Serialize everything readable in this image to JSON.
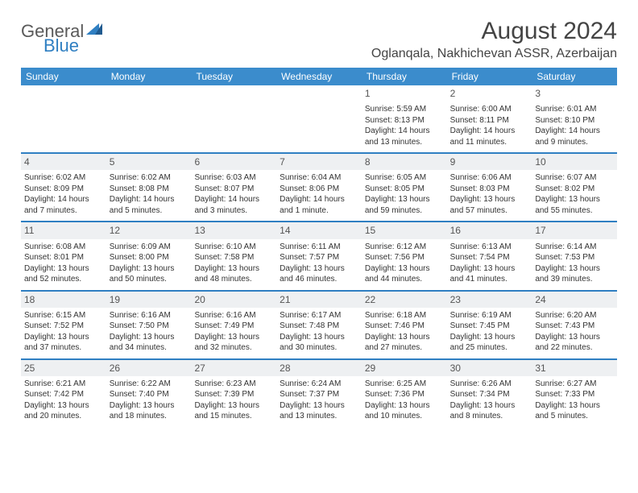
{
  "logo": {
    "text_gray": "General",
    "text_blue": "Blue"
  },
  "header": {
    "month_title": "August 2024",
    "location": "Oglanqala, Nakhichevan ASSR, Azerbaijan"
  },
  "colors": {
    "header_bg": "#3b8ccc",
    "week_border": "#2f7fc2",
    "stripe_bg": "#eef0f2",
    "text": "#333333"
  },
  "day_names": [
    "Sunday",
    "Monday",
    "Tuesday",
    "Wednesday",
    "Thursday",
    "Friday",
    "Saturday"
  ],
  "weeks": [
    [
      {
        "empty": true
      },
      {
        "empty": true
      },
      {
        "empty": true
      },
      {
        "empty": true
      },
      {
        "day": "1",
        "sunrise": "Sunrise: 5:59 AM",
        "sunset": "Sunset: 8:13 PM",
        "daylight1": "Daylight: 14 hours",
        "daylight2": "and 13 minutes.",
        "nostripe": true
      },
      {
        "day": "2",
        "sunrise": "Sunrise: 6:00 AM",
        "sunset": "Sunset: 8:11 PM",
        "daylight1": "Daylight: 14 hours",
        "daylight2": "and 11 minutes.",
        "nostripe": true
      },
      {
        "day": "3",
        "sunrise": "Sunrise: 6:01 AM",
        "sunset": "Sunset: 8:10 PM",
        "daylight1": "Daylight: 14 hours",
        "daylight2": "and 9 minutes.",
        "nostripe": true
      }
    ],
    [
      {
        "day": "4",
        "sunrise": "Sunrise: 6:02 AM",
        "sunset": "Sunset: 8:09 PM",
        "daylight1": "Daylight: 14 hours",
        "daylight2": "and 7 minutes."
      },
      {
        "day": "5",
        "sunrise": "Sunrise: 6:02 AM",
        "sunset": "Sunset: 8:08 PM",
        "daylight1": "Daylight: 14 hours",
        "daylight2": "and 5 minutes."
      },
      {
        "day": "6",
        "sunrise": "Sunrise: 6:03 AM",
        "sunset": "Sunset: 8:07 PM",
        "daylight1": "Daylight: 14 hours",
        "daylight2": "and 3 minutes."
      },
      {
        "day": "7",
        "sunrise": "Sunrise: 6:04 AM",
        "sunset": "Sunset: 8:06 PM",
        "daylight1": "Daylight: 14 hours",
        "daylight2": "and 1 minute."
      },
      {
        "day": "8",
        "sunrise": "Sunrise: 6:05 AM",
        "sunset": "Sunset: 8:05 PM",
        "daylight1": "Daylight: 13 hours",
        "daylight2": "and 59 minutes."
      },
      {
        "day": "9",
        "sunrise": "Sunrise: 6:06 AM",
        "sunset": "Sunset: 8:03 PM",
        "daylight1": "Daylight: 13 hours",
        "daylight2": "and 57 minutes."
      },
      {
        "day": "10",
        "sunrise": "Sunrise: 6:07 AM",
        "sunset": "Sunset: 8:02 PM",
        "daylight1": "Daylight: 13 hours",
        "daylight2": "and 55 minutes."
      }
    ],
    [
      {
        "day": "11",
        "sunrise": "Sunrise: 6:08 AM",
        "sunset": "Sunset: 8:01 PM",
        "daylight1": "Daylight: 13 hours",
        "daylight2": "and 52 minutes."
      },
      {
        "day": "12",
        "sunrise": "Sunrise: 6:09 AM",
        "sunset": "Sunset: 8:00 PM",
        "daylight1": "Daylight: 13 hours",
        "daylight2": "and 50 minutes."
      },
      {
        "day": "13",
        "sunrise": "Sunrise: 6:10 AM",
        "sunset": "Sunset: 7:58 PM",
        "daylight1": "Daylight: 13 hours",
        "daylight2": "and 48 minutes."
      },
      {
        "day": "14",
        "sunrise": "Sunrise: 6:11 AM",
        "sunset": "Sunset: 7:57 PM",
        "daylight1": "Daylight: 13 hours",
        "daylight2": "and 46 minutes."
      },
      {
        "day": "15",
        "sunrise": "Sunrise: 6:12 AM",
        "sunset": "Sunset: 7:56 PM",
        "daylight1": "Daylight: 13 hours",
        "daylight2": "and 44 minutes."
      },
      {
        "day": "16",
        "sunrise": "Sunrise: 6:13 AM",
        "sunset": "Sunset: 7:54 PM",
        "daylight1": "Daylight: 13 hours",
        "daylight2": "and 41 minutes."
      },
      {
        "day": "17",
        "sunrise": "Sunrise: 6:14 AM",
        "sunset": "Sunset: 7:53 PM",
        "daylight1": "Daylight: 13 hours",
        "daylight2": "and 39 minutes."
      }
    ],
    [
      {
        "day": "18",
        "sunrise": "Sunrise: 6:15 AM",
        "sunset": "Sunset: 7:52 PM",
        "daylight1": "Daylight: 13 hours",
        "daylight2": "and 37 minutes."
      },
      {
        "day": "19",
        "sunrise": "Sunrise: 6:16 AM",
        "sunset": "Sunset: 7:50 PM",
        "daylight1": "Daylight: 13 hours",
        "daylight2": "and 34 minutes."
      },
      {
        "day": "20",
        "sunrise": "Sunrise: 6:16 AM",
        "sunset": "Sunset: 7:49 PM",
        "daylight1": "Daylight: 13 hours",
        "daylight2": "and 32 minutes."
      },
      {
        "day": "21",
        "sunrise": "Sunrise: 6:17 AM",
        "sunset": "Sunset: 7:48 PM",
        "daylight1": "Daylight: 13 hours",
        "daylight2": "and 30 minutes."
      },
      {
        "day": "22",
        "sunrise": "Sunrise: 6:18 AM",
        "sunset": "Sunset: 7:46 PM",
        "daylight1": "Daylight: 13 hours",
        "daylight2": "and 27 minutes."
      },
      {
        "day": "23",
        "sunrise": "Sunrise: 6:19 AM",
        "sunset": "Sunset: 7:45 PM",
        "daylight1": "Daylight: 13 hours",
        "daylight2": "and 25 minutes."
      },
      {
        "day": "24",
        "sunrise": "Sunrise: 6:20 AM",
        "sunset": "Sunset: 7:43 PM",
        "daylight1": "Daylight: 13 hours",
        "daylight2": "and 22 minutes."
      }
    ],
    [
      {
        "day": "25",
        "sunrise": "Sunrise: 6:21 AM",
        "sunset": "Sunset: 7:42 PM",
        "daylight1": "Daylight: 13 hours",
        "daylight2": "and 20 minutes."
      },
      {
        "day": "26",
        "sunrise": "Sunrise: 6:22 AM",
        "sunset": "Sunset: 7:40 PM",
        "daylight1": "Daylight: 13 hours",
        "daylight2": "and 18 minutes."
      },
      {
        "day": "27",
        "sunrise": "Sunrise: 6:23 AM",
        "sunset": "Sunset: 7:39 PM",
        "daylight1": "Daylight: 13 hours",
        "daylight2": "and 15 minutes."
      },
      {
        "day": "28",
        "sunrise": "Sunrise: 6:24 AM",
        "sunset": "Sunset: 7:37 PM",
        "daylight1": "Daylight: 13 hours",
        "daylight2": "and 13 minutes."
      },
      {
        "day": "29",
        "sunrise": "Sunrise: 6:25 AM",
        "sunset": "Sunset: 7:36 PM",
        "daylight1": "Daylight: 13 hours",
        "daylight2": "and 10 minutes."
      },
      {
        "day": "30",
        "sunrise": "Sunrise: 6:26 AM",
        "sunset": "Sunset: 7:34 PM",
        "daylight1": "Daylight: 13 hours",
        "daylight2": "and 8 minutes."
      },
      {
        "day": "31",
        "sunrise": "Sunrise: 6:27 AM",
        "sunset": "Sunset: 7:33 PM",
        "daylight1": "Daylight: 13 hours",
        "daylight2": "and 5 minutes."
      }
    ]
  ]
}
